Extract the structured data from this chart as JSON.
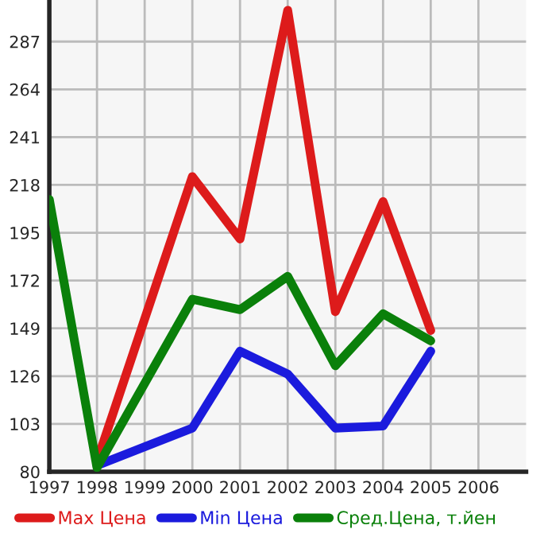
{
  "chart_data": {
    "type": "line",
    "x": [
      1997,
      1998,
      1999,
      2000,
      2001,
      2002,
      2003,
      2004,
      2005
    ],
    "series": [
      {
        "name": "Max Цена",
        "color": "#dd1b1b",
        "values": [
          null,
          85,
          null,
          222,
          192,
          302,
          157,
          210,
          148
        ]
      },
      {
        "name": "Min Цена",
        "color": "#1b1bdd",
        "values": [
          null,
          83,
          null,
          101,
          138,
          127,
          101,
          102,
          138
        ]
      },
      {
        "name": "Сред.Цена, т.йен",
        "color": "#0a800a",
        "values": [
          211,
          82,
          null,
          163,
          158,
          174,
          131,
          156,
          143
        ]
      }
    ],
    "xlim": [
      1997,
      2007
    ],
    "xticks": [
      1997,
      1998,
      1999,
      2000,
      2001,
      2002,
      2003,
      2004,
      2005,
      2006
    ],
    "ylim": [
      80,
      307
    ],
    "yticks": [
      80,
      103,
      126,
      149,
      172,
      195,
      218,
      241,
      264,
      287
    ],
    "grid": true,
    "legend": "bottom",
    "marker": "none",
    "line_style": "solid"
  }
}
